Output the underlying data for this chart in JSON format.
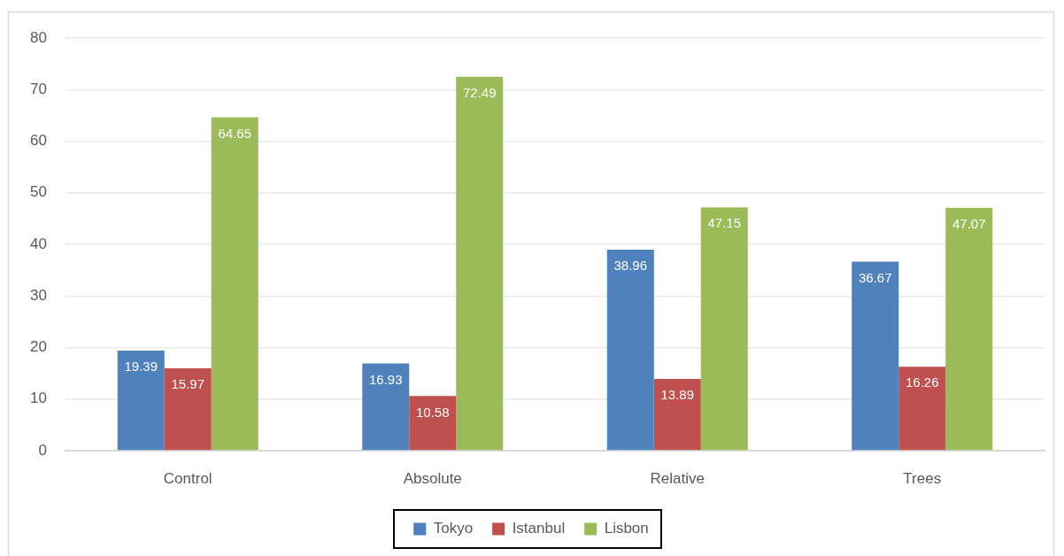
{
  "chart_data": {
    "type": "bar",
    "categories": [
      "Control",
      "Absolute",
      "Relative",
      "Trees"
    ],
    "series": [
      {
        "name": "Tokyo",
        "color": "#4f81bd",
        "values": [
          19.39,
          16.93,
          38.96,
          36.67
        ]
      },
      {
        "name": "Istanbul",
        "color": "#c0504d",
        "values": [
          15.97,
          10.58,
          13.89,
          16.26
        ]
      },
      {
        "name": "Lisbon",
        "color": "#9bbb59",
        "values": [
          64.65,
          72.49,
          47.15,
          47.07
        ]
      }
    ],
    "ylim": [
      0,
      80
    ],
    "yticks": [
      0,
      10,
      20,
      30,
      40,
      50,
      60,
      70,
      80
    ],
    "grid": "y",
    "legend": "bottom",
    "data_labels": true
  }
}
